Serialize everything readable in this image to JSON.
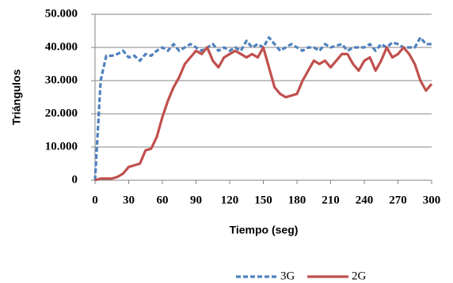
{
  "chart_data": {
    "type": "line",
    "y_label": "Triángulos",
    "x_label": "Tiempo (seg)",
    "x": [
      0,
      5,
      10,
      15,
      20,
      25,
      30,
      35,
      40,
      45,
      50,
      55,
      60,
      65,
      70,
      75,
      80,
      85,
      90,
      95,
      100,
      105,
      110,
      115,
      120,
      125,
      130,
      135,
      140,
      145,
      150,
      155,
      160,
      165,
      170,
      175,
      180,
      185,
      190,
      195,
      200,
      205,
      210,
      215,
      220,
      225,
      230,
      235,
      240,
      245,
      250,
      255,
      260,
      265,
      270,
      275,
      280,
      285,
      290,
      295,
      300
    ],
    "series": [
      {
        "name": "3G",
        "color": "#4f81bd",
        "style": "dashed",
        "values": [
          0,
          30000,
          37500,
          37500,
          38000,
          39000,
          37000,
          37500,
          36000,
          38000,
          37500,
          39000,
          40000,
          39000,
          41000,
          39000,
          40000,
          41000,
          40000,
          39000,
          40000,
          41000,
          39000,
          40000,
          39000,
          40000,
          39000,
          42000,
          40000,
          41000,
          40000,
          43000,
          41000,
          39000,
          40000,
          41000,
          40000,
          39000,
          40000,
          40000,
          39000,
          41000,
          40000,
          40500,
          41000,
          39000,
          40000,
          40000,
          40000,
          41000,
          39000,
          41000,
          40000,
          41500,
          41000,
          40000,
          40000,
          40000,
          43000,
          41000,
          41000
        ]
      },
      {
        "name": "2G",
        "color": "#c0504d",
        "style": "solid",
        "values": [
          0,
          500,
          500,
          500,
          1000,
          2000,
          4000,
          4500,
          5000,
          9000,
          9500,
          13000,
          19000,
          24000,
          28000,
          31000,
          35000,
          37000,
          39000,
          38000,
          40000,
          36000,
          34000,
          37000,
          38000,
          39000,
          38000,
          37000,
          38000,
          37000,
          40000,
          34000,
          28000,
          26000,
          25000,
          25500,
          26000,
          30000,
          33000,
          36000,
          35000,
          36000,
          34000,
          36000,
          38000,
          38000,
          35000,
          33000,
          36000,
          37000,
          33000,
          36000,
          40000,
          37000,
          38000,
          40000,
          38000,
          35000,
          30000,
          27000,
          29000
        ]
      }
    ],
    "xlim": [
      0,
      300
    ],
    "xticks": [
      0,
      30,
      60,
      90,
      120,
      150,
      180,
      210,
      240,
      270,
      300
    ],
    "ylim": [
      0,
      50000
    ],
    "yticks": [
      {
        "value": 0,
        "label": "0"
      },
      {
        "value": 10000,
        "label": "10.000"
      },
      {
        "value": 20000,
        "label": "20.000"
      },
      {
        "value": 30000,
        "label": "30.000"
      },
      {
        "value": 40000,
        "label": "40.000"
      },
      {
        "value": 50000,
        "label": "50.000"
      }
    ],
    "grid": true,
    "legend": "bottom"
  }
}
